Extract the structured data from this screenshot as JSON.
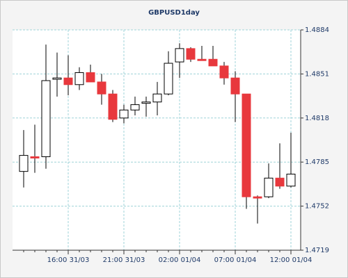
{
  "chart_data": {
    "type": "candlestick",
    "title": "GBPUSD1day",
    "categories": [
      null,
      null,
      null,
      null,
      "16:00 31/03",
      null,
      null,
      null,
      null,
      "21:00 31/03",
      null,
      null,
      null,
      null,
      "02:00 01/04",
      null,
      null,
      null,
      null,
      "07:00 01/04",
      null,
      null,
      null,
      null,
      "12:00 01/04"
    ],
    "open": [
      1.4778,
      1.4789,
      1.4789,
      1.4847,
      1.4848,
      1.4843,
      1.4852,
      1.4845,
      1.4836,
      1.4818,
      1.4824,
      1.4829,
      1.483,
      1.4836,
      1.486,
      1.487,
      1.4862,
      1.4862,
      1.4857,
      1.4848,
      1.4836,
      1.4759,
      1.4759,
      1.4773,
      1.4767
    ],
    "high": [
      1.4809,
      1.4813,
      1.4873,
      1.4867,
      1.4865,
      1.4856,
      1.4858,
      1.4851,
      1.4839,
      1.4828,
      1.4834,
      1.4834,
      1.4845,
      1.4868,
      1.4874,
      1.4871,
      1.4872,
      1.4872,
      1.486,
      1.4853,
      1.4836,
      1.476,
      1.4784,
      1.4799,
      1.4807
    ],
    "low": [
      1.4766,
      1.4777,
      1.478,
      1.4834,
      1.4835,
      1.4839,
      1.4845,
      1.4828,
      1.4815,
      1.4814,
      1.482,
      1.4819,
      1.482,
      1.4835,
      1.4848,
      1.486,
      1.4861,
      1.4857,
      1.4843,
      1.4815,
      1.475,
      1.4739,
      1.4758,
      1.4765,
      1.4766
    ],
    "close": [
      1.479,
      1.4788,
      1.4846,
      1.4848,
      1.4843,
      1.4852,
      1.4845,
      1.4836,
      1.4817,
      1.4824,
      1.4828,
      1.483,
      1.4836,
      1.4859,
      1.487,
      1.4862,
      1.4861,
      1.4857,
      1.4848,
      1.4836,
      1.4759,
      1.4758,
      1.4773,
      1.4767,
      1.4776
    ],
    "up_color": "#ffffff",
    "down_color": "#e8383d",
    "ylim": [
      1.4719,
      1.4884
    ],
    "yticks": [
      1.4719,
      1.4752,
      1.4785,
      1.4818,
      1.4851,
      1.4884
    ],
    "grid": true
  }
}
